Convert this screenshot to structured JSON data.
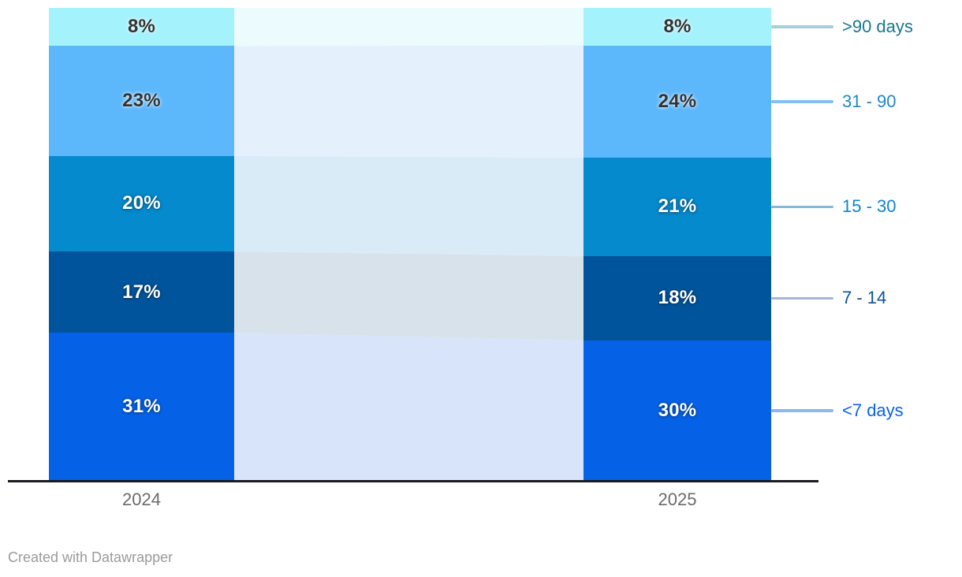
{
  "chart_data": {
    "type": "bar",
    "subtype": "stacked-column-100pct-with-connectors",
    "title": "",
    "xlabel": "",
    "ylabel": "",
    "ylim": [
      0,
      100
    ],
    "grid": false,
    "legend_position": "right",
    "categories": [
      "2024",
      "2025"
    ],
    "series": [
      {
        "name": ">90 days",
        "values": [
          8,
          8
        ],
        "labels": [
          "8%",
          "8%"
        ],
        "color": "#a4f2fc",
        "connector_color": "#ebfbfe",
        "value_text_style": "dark",
        "name_color": "#17788c",
        "leader_color": "#a9cdd9"
      },
      {
        "name": "31 - 90",
        "values": [
          23,
          24
        ],
        "labels": [
          "23%",
          "24%"
        ],
        "color": "#5cb7fb",
        "connector_color": "#e4f1fc",
        "value_text_style": "dark",
        "name_color": "#1e87cb",
        "leader_color": "#85c0ee"
      },
      {
        "name": "15 - 30",
        "values": [
          20,
          21
        ],
        "labels": [
          "20%",
          "21%"
        ],
        "color": "#058acd",
        "connector_color": "#d9ebf7",
        "value_text_style": "light",
        "name_color": "#0e86c9",
        "leader_color": "#7fb9e2"
      },
      {
        "name": "7 - 14",
        "values": [
          17,
          18
        ],
        "labels": [
          "17%",
          "18%"
        ],
        "color": "#00549b",
        "connector_color": "#d8e2ea",
        "value_text_style": "light",
        "name_color": "#09529b",
        "leader_color": "#a3b6d3"
      },
      {
        "name": "<7 days",
        "values": [
          31,
          30
        ],
        "labels": [
          "31%",
          "30%"
        ],
        "color": "#0562e6",
        "connector_color": "#d7e4f9",
        "value_text_style": "light",
        "name_color": "#0b63e8",
        "leader_color": "#8fb4f2"
      }
    ],
    "axis": {
      "line_color": "#1a1a1f",
      "category_label_color": "#6b6b6b"
    }
  },
  "footer": {
    "attribution": "Created with Datawrapper"
  }
}
